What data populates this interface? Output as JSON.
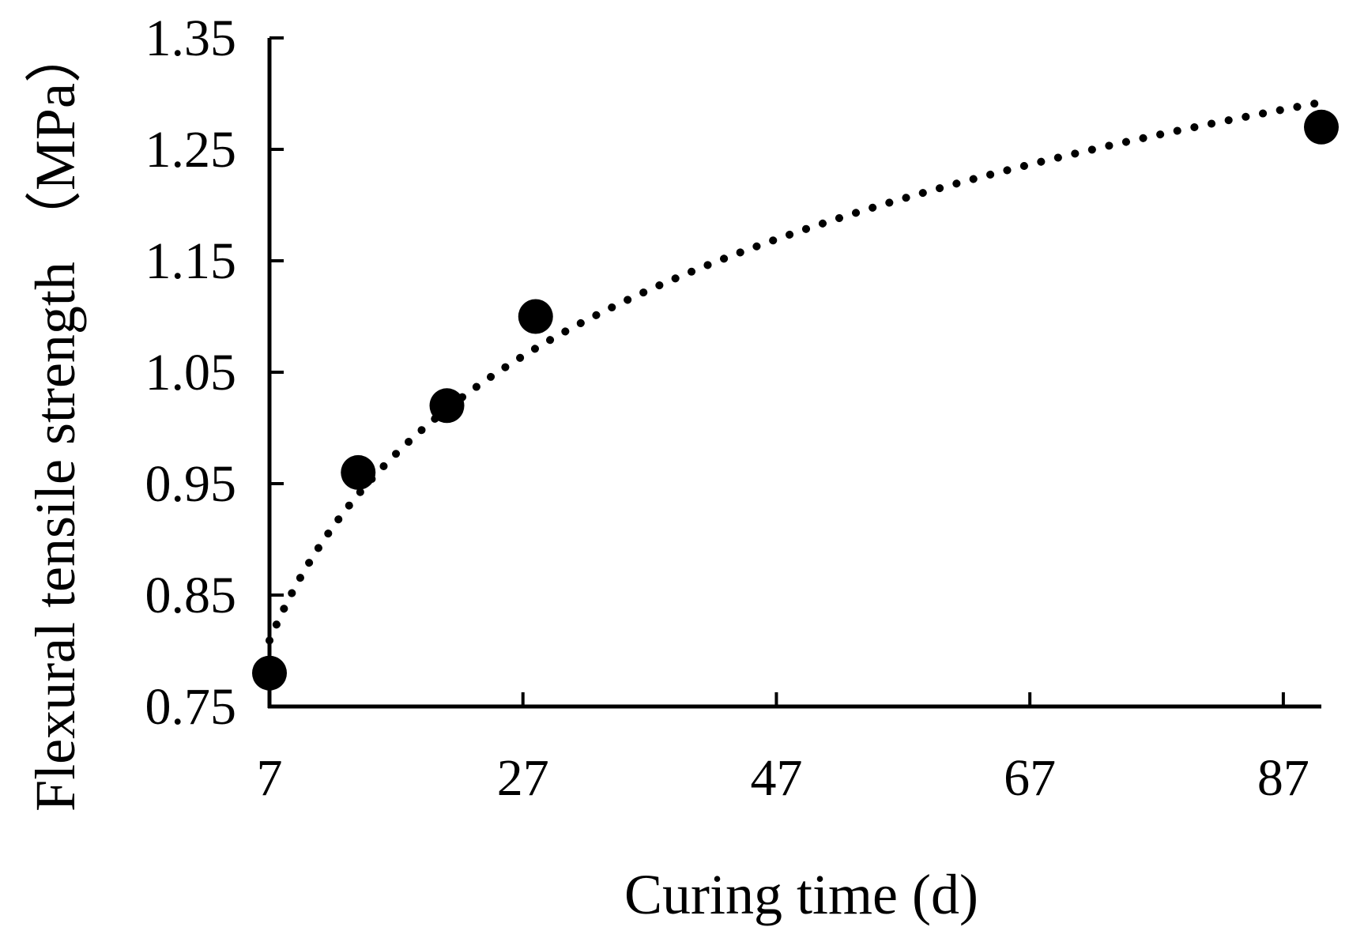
{
  "chart_data": {
    "type": "scatter",
    "title": "",
    "xlabel": "Curing time (d)",
    "ylabel": "Flexural tensile strength （MPa）",
    "xlim": [
      7,
      90
    ],
    "ylim": [
      0.75,
      1.35
    ],
    "xticks": [
      7,
      27,
      47,
      67,
      87
    ],
    "xtick_labels": [
      "7",
      "27",
      "47",
      "67",
      "87"
    ],
    "yticks": [
      0.75,
      0.85,
      0.95,
      1.05,
      1.15,
      1.25,
      1.35
    ],
    "ytick_labels": [
      "0.75",
      "0.85",
      "0.95",
      "1.05",
      "1.15",
      "1.25",
      "1.35"
    ],
    "grid": false,
    "series": [
      {
        "name": "Flexural tensile strength",
        "marker": "filled-circle",
        "x": [
          7,
          14,
          21,
          28,
          90
        ],
        "y": [
          0.78,
          0.96,
          1.02,
          1.1,
          1.27
        ],
        "trendline": "logarithmic",
        "trendline_style": "dotted"
      }
    ],
    "colors": {
      "marker": "#000000",
      "axis": "#000000",
      "trendline": "#000000"
    }
  }
}
